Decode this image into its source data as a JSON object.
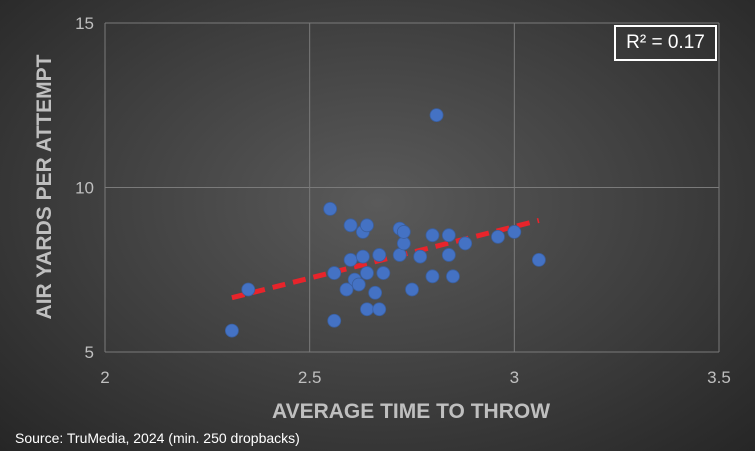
{
  "chart_data": {
    "type": "scatter",
    "title": "",
    "xlabel": "AVERAGE TIME TO THROW",
    "ylabel": "AIR YARDS PER ATTEMPT",
    "xlim": [
      2,
      3.5
    ],
    "ylim": [
      5,
      15
    ],
    "xticks": [
      "2",
      "2.5",
      "3",
      "3.5"
    ],
    "yticks": [
      "5",
      "10",
      "15"
    ],
    "grid": true,
    "point_color": "#4472c4",
    "trendline": {
      "x": [
        2.31,
        3.06
      ],
      "y": [
        6.65,
        9.0
      ],
      "color": "#e8242b",
      "style": "dashed"
    },
    "annotation": "R² = 0.17",
    "points": [
      {
        "x": 2.31,
        "y": 5.65
      },
      {
        "x": 2.35,
        "y": 6.9
      },
      {
        "x": 2.55,
        "y": 9.35
      },
      {
        "x": 2.56,
        "y": 7.4
      },
      {
        "x": 2.56,
        "y": 5.95
      },
      {
        "x": 2.59,
        "y": 6.9
      },
      {
        "x": 2.6,
        "y": 7.8
      },
      {
        "x": 2.6,
        "y": 8.85
      },
      {
        "x": 2.61,
        "y": 7.2
      },
      {
        "x": 2.62,
        "y": 7.05
      },
      {
        "x": 2.63,
        "y": 7.9
      },
      {
        "x": 2.63,
        "y": 8.65
      },
      {
        "x": 2.64,
        "y": 8.85
      },
      {
        "x": 2.64,
        "y": 7.4
      },
      {
        "x": 2.64,
        "y": 6.3
      },
      {
        "x": 2.66,
        "y": 6.8
      },
      {
        "x": 2.67,
        "y": 7.95
      },
      {
        "x": 2.67,
        "y": 6.3
      },
      {
        "x": 2.68,
        "y": 7.4
      },
      {
        "x": 2.72,
        "y": 8.75
      },
      {
        "x": 2.72,
        "y": 7.95
      },
      {
        "x": 2.73,
        "y": 8.3
      },
      {
        "x": 2.73,
        "y": 8.65
      },
      {
        "x": 2.75,
        "y": 6.9
      },
      {
        "x": 2.77,
        "y": 7.9
      },
      {
        "x": 2.8,
        "y": 8.55
      },
      {
        "x": 2.8,
        "y": 7.3
      },
      {
        "x": 2.81,
        "y": 12.2
      },
      {
        "x": 2.84,
        "y": 8.55
      },
      {
        "x": 2.84,
        "y": 7.95
      },
      {
        "x": 2.85,
        "y": 7.3
      },
      {
        "x": 2.88,
        "y": 8.3
      },
      {
        "x": 2.96,
        "y": 8.5
      },
      {
        "x": 3.0,
        "y": 8.65
      },
      {
        "x": 3.06,
        "y": 7.8
      }
    ]
  },
  "source": "Source: TruMedia, 2024 (min. 250 dropbacks)"
}
